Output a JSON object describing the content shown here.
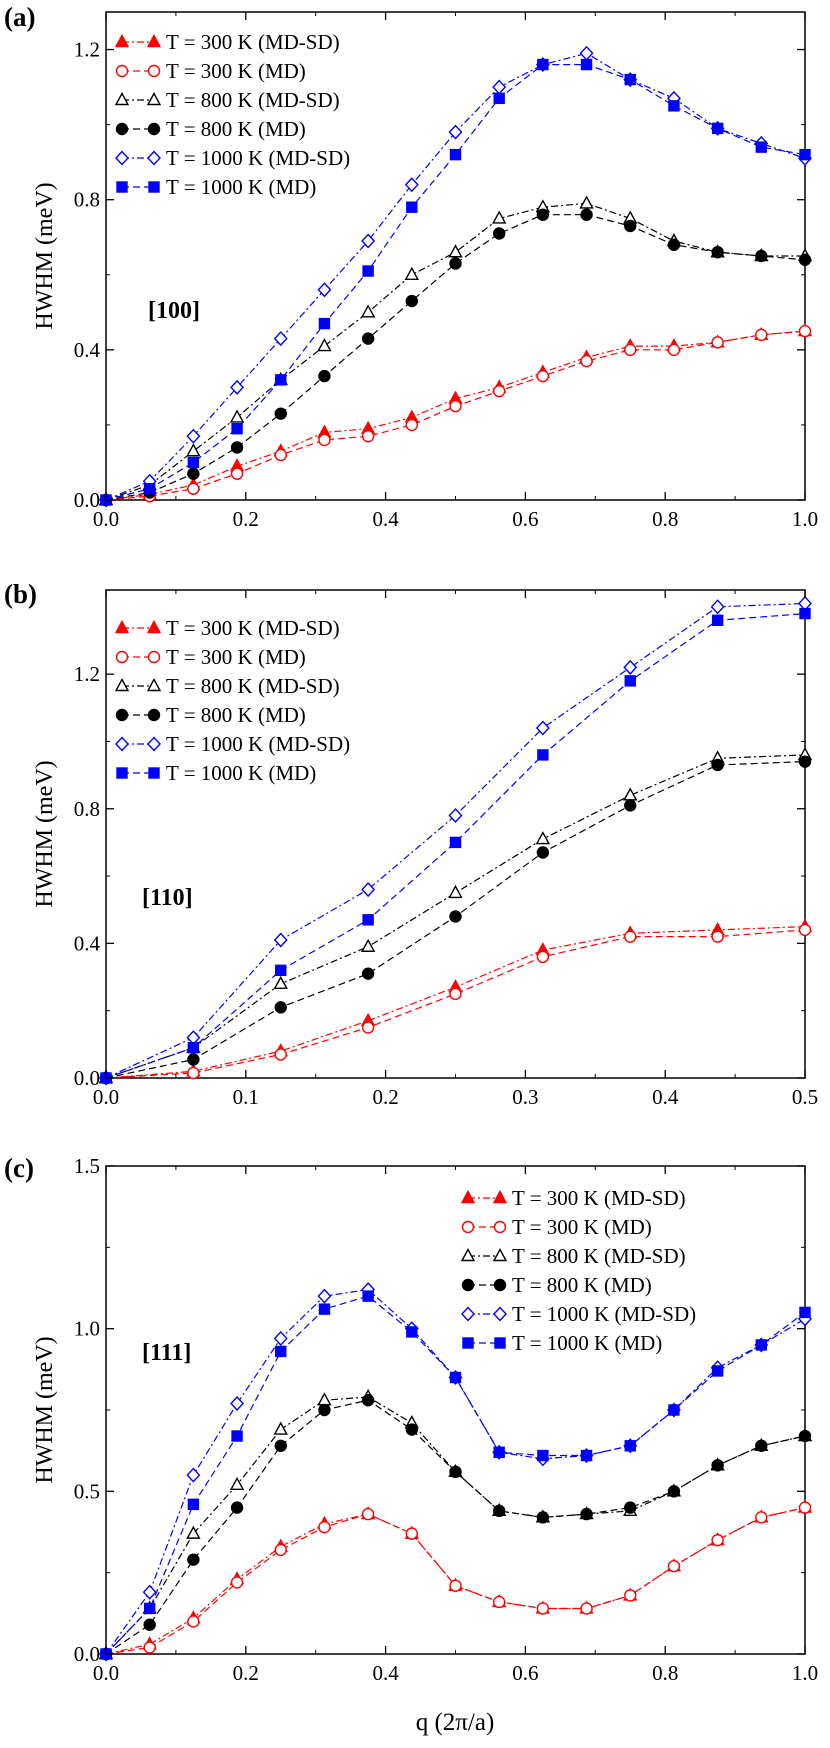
{
  "x_axis_label": "q (2π/a)",
  "panels": [
    {
      "tag": "(a)",
      "direction": "[100]",
      "ylabel": "HWHM  (meV)",
      "legend_position": "top-left",
      "chart_data": {
        "type": "line",
        "xlim": [
          0,
          1.0
        ],
        "ylim": [
          0,
          1.3
        ],
        "xticks": [
          "0.0",
          "0.2",
          "0.4",
          "0.6",
          "0.8",
          "1.0"
        ],
        "xtick_values": [
          0,
          0.2,
          0.4,
          0.6,
          0.8,
          1.0
        ],
        "yticks": [
          "0.0",
          "0.4",
          "0.8",
          "1.2"
        ],
        "ytick_values": [
          0,
          0.4,
          0.8,
          1.2
        ],
        "x": [
          0,
          0.0625,
          0.125,
          0.1875,
          0.25,
          0.3125,
          0.375,
          0.4375,
          0.5,
          0.5625,
          0.625,
          0.6875,
          0.75,
          0.8125,
          0.875,
          0.9375,
          1.0
        ],
        "series": [
          {
            "name": "T = 300 K (MD-SD)",
            "color": "#ff0000",
            "marker": "triangle",
            "filled": true,
            "dash": "dashdot",
            "values": [
              0,
              0.015,
              0.04,
              0.09,
              0.13,
              0.18,
              0.19,
              0.22,
              0.27,
              0.3,
              0.34,
              0.38,
              0.41,
              0.41,
              0.42,
              0.44,
              0.45
            ]
          },
          {
            "name": "T = 300 K (MD)",
            "color": "#ff0000",
            "marker": "circle",
            "filled": false,
            "dash": "dash",
            "values": [
              0,
              0.01,
              0.03,
              0.07,
              0.12,
              0.16,
              0.17,
              0.2,
              0.25,
              0.29,
              0.33,
              0.37,
              0.4,
              0.4,
              0.42,
              0.44,
              0.45
            ]
          },
          {
            "name": "T = 800 K (MD-SD)",
            "color": "#000000",
            "marker": "triangle",
            "filled": false,
            "dash": "dashdot",
            "values": [
              0,
              0.04,
              0.13,
              0.22,
              0.32,
              0.41,
              0.5,
              0.6,
              0.66,
              0.75,
              0.78,
              0.79,
              0.75,
              0.69,
              0.66,
              0.65,
              0.65
            ]
          },
          {
            "name": "T = 800 K (MD)",
            "color": "#000000",
            "marker": "circle",
            "filled": true,
            "dash": "dash",
            "values": [
              0,
              0.02,
              0.07,
              0.14,
              0.23,
              0.33,
              0.43,
              0.53,
              0.63,
              0.71,
              0.76,
              0.76,
              0.73,
              0.68,
              0.66,
              0.65,
              0.64
            ]
          },
          {
            "name": "T = 1000 K (MD-SD)",
            "color": "#0000ff",
            "marker": "diamond",
            "filled": false,
            "dash": "dashdot",
            "values": [
              0,
              0.05,
              0.17,
              0.3,
              0.43,
              0.56,
              0.69,
              0.84,
              0.98,
              1.1,
              1.16,
              1.19,
              1.12,
              1.07,
              0.99,
              0.95,
              0.91
            ]
          },
          {
            "name": "T = 1000 K (MD)",
            "color": "#0000ff",
            "marker": "square",
            "filled": true,
            "dash": "dash",
            "values": [
              0,
              0.03,
              0.1,
              0.19,
              0.32,
              0.47,
              0.61,
              0.78,
              0.92,
              1.07,
              1.16,
              1.16,
              1.12,
              1.05,
              0.99,
              0.94,
              0.92
            ]
          }
        ]
      }
    },
    {
      "tag": "(b)",
      "direction": "[110]",
      "ylabel": "HWHM  (meV)",
      "legend_position": "top-left",
      "chart_data": {
        "type": "line",
        "xlim": [
          0,
          0.5
        ],
        "ylim": [
          0,
          1.45
        ],
        "xticks": [
          "0.0",
          "0.1",
          "0.2",
          "0.3",
          "0.4",
          "0.5"
        ],
        "xtick_values": [
          0,
          0.1,
          0.2,
          0.3,
          0.4,
          0.5
        ],
        "yticks": [
          "0.0",
          "0.4",
          "0.8",
          "1.2"
        ],
        "ytick_values": [
          0,
          0.4,
          0.8,
          1.2
        ],
        "x": [
          0,
          0.0625,
          0.125,
          0.1875,
          0.25,
          0.3125,
          0.375,
          0.4375,
          0.5
        ],
        "series": [
          {
            "name": "T = 300 K (MD-SD)",
            "color": "#ff0000",
            "marker": "triangle",
            "filled": true,
            "dash": "dashdot",
            "values": [
              0,
              0.02,
              0.08,
              0.17,
              0.27,
              0.38,
              0.43,
              0.44,
              0.45
            ]
          },
          {
            "name": "T = 300 K (MD)",
            "color": "#ff0000",
            "marker": "circle",
            "filled": false,
            "dash": "dash",
            "values": [
              0,
              0.015,
              0.07,
              0.15,
              0.25,
              0.36,
              0.42,
              0.42,
              0.44
            ]
          },
          {
            "name": "T = 800 K (MD-SD)",
            "color": "#000000",
            "marker": "triangle",
            "filled": false,
            "dash": "dashdot",
            "values": [
              0,
              0.09,
              0.28,
              0.39,
              0.55,
              0.71,
              0.84,
              0.95,
              0.96
            ]
          },
          {
            "name": "T = 800 K (MD)",
            "color": "#000000",
            "marker": "circle",
            "filled": true,
            "dash": "dash",
            "values": [
              0,
              0.055,
              0.21,
              0.31,
              0.48,
              0.67,
              0.81,
              0.93,
              0.94
            ]
          },
          {
            "name": "T = 1000 K (MD-SD)",
            "color": "#0000ff",
            "marker": "diamond",
            "filled": false,
            "dash": "dashdot",
            "values": [
              0,
              0.12,
              0.41,
              0.56,
              0.78,
              1.04,
              1.22,
              1.4,
              1.41
            ]
          },
          {
            "name": "T = 1000 K (MD)",
            "color": "#0000ff",
            "marker": "square",
            "filled": true,
            "dash": "dash",
            "values": [
              0,
              0.09,
              0.32,
              0.47,
              0.7,
              0.96,
              1.18,
              1.36,
              1.38
            ]
          }
        ]
      }
    },
    {
      "tag": "(c)",
      "direction": "[111]",
      "ylabel": "HWHM  (meV)",
      "legend_position": "top-right",
      "chart_data": {
        "type": "line",
        "xlim": [
          0,
          1.0
        ],
        "ylim": [
          0,
          1.5
        ],
        "xticks": [
          "0.0",
          "0.2",
          "0.4",
          "0.6",
          "0.8",
          "1.0"
        ],
        "xtick_values": [
          0,
          0.2,
          0.4,
          0.6,
          0.8,
          1.0
        ],
        "yticks": [
          "0.0",
          "0.5",
          "1.0",
          "1.5"
        ],
        "ytick_values": [
          0,
          0.5,
          1.0,
          1.5
        ],
        "x": [
          0,
          0.0625,
          0.125,
          0.1875,
          0.25,
          0.3125,
          0.375,
          0.4375,
          0.5,
          0.5625,
          0.625,
          0.6875,
          0.75,
          0.8125,
          0.875,
          0.9375,
          1.0
        ],
        "series": [
          {
            "name": "T = 300 K (MD-SD)",
            "color": "#ff0000",
            "marker": "triangle",
            "filled": true,
            "dash": "dashdot",
            "values": [
              0,
              0.03,
              0.11,
              0.23,
              0.33,
              0.4,
              0.43,
              0.37,
              0.21,
              0.16,
              0.14,
              0.14,
              0.18,
              0.27,
              0.35,
              0.42,
              0.45
            ]
          },
          {
            "name": "T = 300 K (MD)",
            "color": "#ff0000",
            "marker": "circle",
            "filled": false,
            "dash": "dash",
            "values": [
              0,
              0.02,
              0.1,
              0.22,
              0.32,
              0.39,
              0.43,
              0.37,
              0.21,
              0.16,
              0.14,
              0.14,
              0.18,
              0.27,
              0.35,
              0.42,
              0.45
            ]
          },
          {
            "name": "T = 800 K (MD-SD)",
            "color": "#000000",
            "marker": "triangle",
            "filled": false,
            "dash": "dashdot",
            "values": [
              0,
              0.14,
              0.37,
              0.52,
              0.69,
              0.78,
              0.79,
              0.71,
              0.56,
              0.44,
              0.42,
              0.43,
              0.44,
              0.5,
              0.58,
              0.64,
              0.67
            ]
          },
          {
            "name": "T = 800 K (MD)",
            "color": "#000000",
            "marker": "circle",
            "filled": true,
            "dash": "dash",
            "values": [
              0,
              0.09,
              0.29,
              0.45,
              0.64,
              0.75,
              0.78,
              0.69,
              0.56,
              0.44,
              0.42,
              0.43,
              0.45,
              0.5,
              0.58,
              0.64,
              0.67
            ]
          },
          {
            "name": "T = 1000 K (MD-SD)",
            "color": "#0000ff",
            "marker": "diamond",
            "filled": false,
            "dash": "dashdot",
            "values": [
              0,
              0.19,
              0.55,
              0.77,
              0.97,
              1.1,
              1.12,
              1.0,
              0.85,
              0.62,
              0.6,
              0.61,
              0.64,
              0.75,
              0.88,
              0.95,
              1.03
            ]
          },
          {
            "name": "T = 1000 K (MD)",
            "color": "#0000ff",
            "marker": "square",
            "filled": true,
            "dash": "dash",
            "values": [
              0,
              0.14,
              0.46,
              0.67,
              0.93,
              1.06,
              1.1,
              0.99,
              0.85,
              0.62,
              0.61,
              0.61,
              0.64,
              0.75,
              0.87,
              0.95,
              1.05
            ]
          }
        ]
      }
    }
  ]
}
